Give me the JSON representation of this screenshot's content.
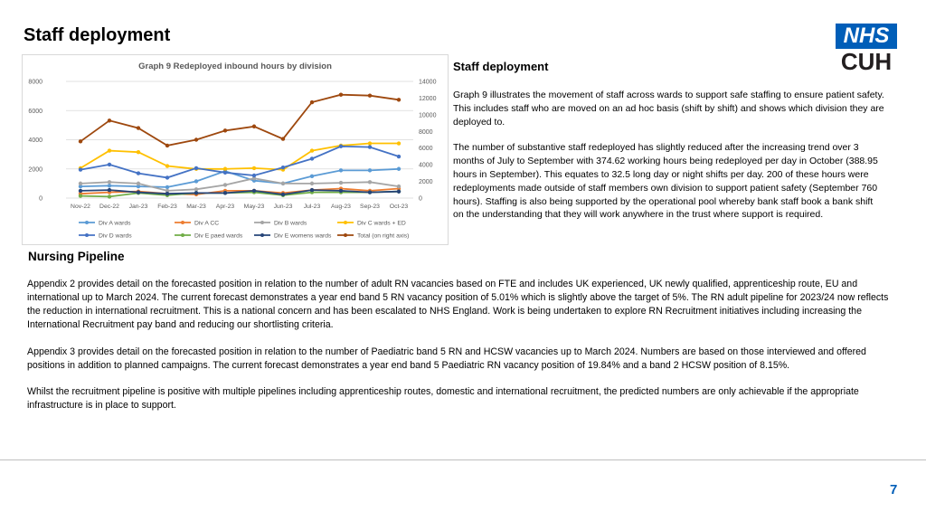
{
  "page": {
    "title": "Staff deployment",
    "page_number": "7",
    "logo": {
      "line1": "NHS",
      "line2": "CUH"
    }
  },
  "side": {
    "heading": "Staff deployment",
    "paragraphs": [
      "Graph 9 illustrates the movement of staff across wards to support safe staffing to ensure patient safety. This includes staff who are moved on an ad hoc basis (shift by shift) and shows which division they are deployed to.",
      "The number of substantive staff redeployed has slightly reduced after the increasing trend over 3 months of July to September with 374.62 working hours being redeployed per day in October (388.95 hours in September). This equates to 32.5 long day or night shifts per day.  200 of these hours were redeployments made outside of staff members own division to support patient safety (September 760 hours). Staffing is also being supported by the operational pool whereby bank staff book a bank shift on the understanding that they will work anywhere in the trust where support is required."
    ]
  },
  "section": {
    "heading": "Nursing Pipeline",
    "paragraphs": [
      "Appendix 2 provides detail on the forecasted position in relation to the number of adult RN vacancies based on FTE and includes UK experienced, UK newly qualified, apprenticeship route, EU and international up to March 2024. The current forecast demonstrates a year end band 5 RN vacancy position of 5.01% which is slightly above the target of 5%. The RN adult pipeline for 2023/24 now reflects the reduction in international recruitment. This is a national concern and has been escalated to NHS England. Work is being undertaken to explore RN Recruitment initiatives including increasing the International Recruitment pay band and reducing our shortlisting criteria.",
      "Appendix 3 provides detail on the forecasted position in relation to the number of Paediatric band 5 RN and HCSW vacancies up to March 2024. Numbers are based on those interviewed and offered positions in addition to planned campaigns. The current forecast demonstrates a year end band 5 Paediatric RN vacancy position of 19.84% and a band 2 HCSW position of 8.15%.",
      "Whilst the recruitment pipeline is positive with multiple pipelines including apprenticeship routes, domestic and international recruitment, the predicted numbers are only achievable if the appropriate infrastructure is in place to support."
    ]
  },
  "chart_data": {
    "type": "line",
    "title": "Graph 9 Redeployed inbound hours by division",
    "categories": [
      "Nov-22",
      "Dec-22",
      "Jan-23",
      "Feb-23",
      "Mar-23",
      "Apr-23",
      "May-23",
      "Jun-23",
      "Jul-23",
      "Aug-23",
      "Sep-23",
      "Oct-23"
    ],
    "left_axis": {
      "min": 0,
      "max": 8000,
      "ticks": [
        "0",
        "2000",
        "4000",
        "6000",
        "8000"
      ]
    },
    "right_axis": {
      "min": 0,
      "max": 14000,
      "ticks": [
        "0",
        "2000",
        "4000",
        "6000",
        "8000",
        "10000",
        "12000",
        "14000"
      ]
    },
    "grid": true,
    "legend_position": "bottom",
    "series": [
      {
        "name": "Div A wards",
        "color": "#5b9bd5",
        "axis": "left",
        "values": [
          800,
          850,
          800,
          750,
          1150,
          1850,
          1200,
          1000,
          1500,
          1900,
          1900,
          2000
        ]
      },
      {
        "name": "Div A CC",
        "color": "#ed7d31",
        "axis": "left",
        "values": [
          300,
          400,
          450,
          300,
          250,
          500,
          500,
          350,
          550,
          650,
          500,
          650
        ]
      },
      {
        "name": "Div B wards",
        "color": "#a5a5a5",
        "axis": "left",
        "values": [
          1000,
          1100,
          1000,
          500,
          600,
          900,
          1350,
          1000,
          1000,
          1050,
          1100,
          800
        ]
      },
      {
        "name": "Div C wards + ED",
        "color": "#ffc000",
        "axis": "left",
        "values": [
          2050,
          3250,
          3150,
          2200,
          2000,
          2000,
          2050,
          1950,
          3250,
          3600,
          3750,
          3750
        ]
      },
      {
        "name": "Div D wards",
        "color": "#4472c4",
        "axis": "left",
        "values": [
          1950,
          2300,
          1700,
          1400,
          2050,
          1750,
          1550,
          2100,
          2700,
          3550,
          3500,
          2850
        ]
      },
      {
        "name": "Div E paed wards",
        "color": "#70ad47",
        "axis": "left",
        "values": [
          150,
          100,
          350,
          200,
          350,
          350,
          400,
          200,
          400,
          400,
          400,
          450
        ]
      },
      {
        "name": "Div E womens wards",
        "color": "#264478",
        "axis": "left",
        "values": [
          500,
          550,
          400,
          300,
          350,
          350,
          500,
          250,
          550,
          500,
          400,
          450
        ]
      },
      {
        "name": "Total (on right axis)",
        "color": "#9e480e",
        "axis": "right",
        "values": [
          6800,
          9300,
          8400,
          6300,
          7000,
          8100,
          8600,
          7100,
          11500,
          12400,
          12300,
          11800
        ]
      }
    ]
  }
}
